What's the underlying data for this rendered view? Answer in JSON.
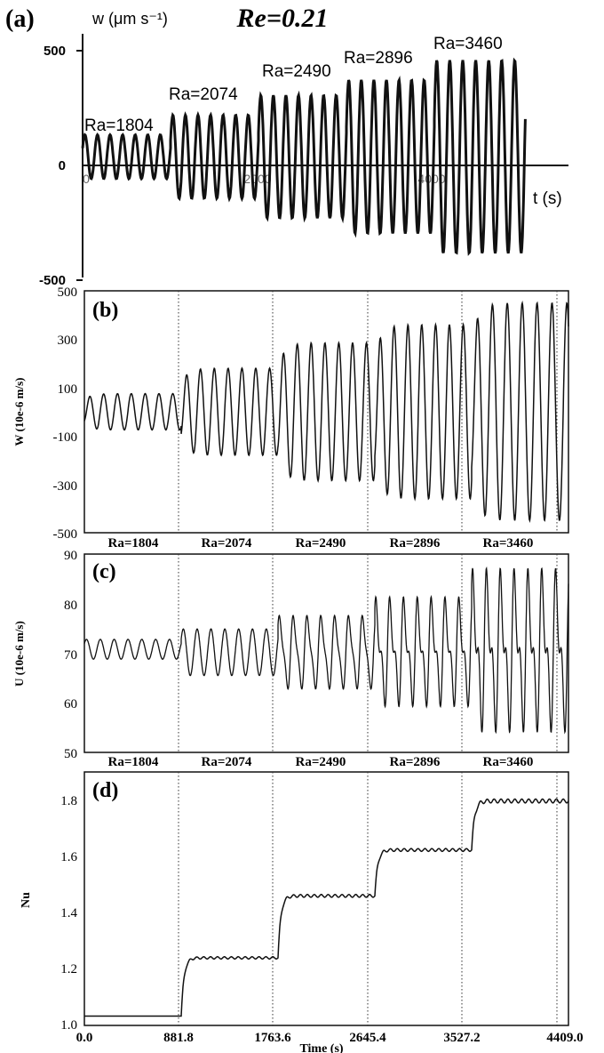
{
  "figure_title": "Re=0.21",
  "chart_data": [
    {
      "panel": "(a)",
      "type": "line",
      "ylabel": "w (μm s⁻¹)",
      "xlabel": "t (s)",
      "yticks": [
        "500",
        "0",
        "-500"
      ],
      "xticks": [
        "0",
        "2000",
        "4000"
      ],
      "ylim": [
        -550,
        560
      ],
      "xlim": [
        0,
        4800
      ],
      "segments": [
        {
          "label": "Ra=1804",
          "t_start": 0,
          "t_end": 880,
          "amplitude": 100,
          "cycles": 7
        },
        {
          "label": "Ra=2074",
          "t_start": 880,
          "t_end": 1760,
          "amplitude": 190,
          "cycles": 7
        },
        {
          "label": "Ra=2490",
          "t_start": 1760,
          "t_end": 2640,
          "amplitude": 280,
          "cycles": 7
        },
        {
          "label": "Ra=2896",
          "t_start": 2640,
          "t_end": 3520,
          "amplitude": 350,
          "cycles": 7
        },
        {
          "label": "Ra=3460",
          "t_start": 3520,
          "t_end": 4430,
          "amplitude": 440,
          "cycles": 7
        }
      ]
    },
    {
      "panel": "(b)",
      "type": "line",
      "ylabel": "W (10e-6 m/s)",
      "yticks": [
        "500",
        "300",
        "100",
        "-100",
        "-300",
        "-500"
      ],
      "ylim": [
        -500,
        500
      ],
      "xlim": [
        0,
        4409
      ],
      "bottom_labels": [
        "Ra=1804",
        "Ra=2074",
        "Ra=2490",
        "Ra=2896",
        "Ra=3460"
      ],
      "segments": [
        {
          "amplitude": 75,
          "cycles": 7
        },
        {
          "amplitude": 180,
          "cycles": 7
        },
        {
          "amplitude": 285,
          "cycles": 7
        },
        {
          "amplitude": 360,
          "cycles": 7
        },
        {
          "amplitude": 450,
          "cycles": 6.5
        }
      ]
    },
    {
      "panel": "(c)",
      "type": "line",
      "ylabel": "U (10e-6 m/s)",
      "yticks": [
        "90",
        "80",
        "70",
        "60",
        "50"
      ],
      "ylim": [
        50,
        90
      ],
      "xlim": [
        0,
        4409
      ],
      "bottom_labels": [
        "Ra=1804",
        "Ra=2074",
        "Ra=2490",
        "Ra=2896",
        "Ra=3460"
      ],
      "segments": [
        {
          "mean": 70.8,
          "amplitude": 2,
          "cycles": 7,
          "sub": 0
        },
        {
          "mean": 70.2,
          "amplitude": 4.7,
          "cycles": 7,
          "sub": 0
        },
        {
          "mean": 70.2,
          "amplitude": 7.5,
          "cycles": 7,
          "sub": 0.3
        },
        {
          "mean": 70.3,
          "amplitude": 10.5,
          "cycles": 7,
          "sub": 0.55
        },
        {
          "mean": 70.6,
          "amplitude": 15.5,
          "cycles": 7,
          "sub": 0.6
        }
      ]
    },
    {
      "panel": "(d)",
      "type": "line",
      "ylabel": "Nu",
      "xlabel": "Time (s)",
      "yticks": [
        "1.8",
        "1.6",
        "1.4",
        "1.2",
        "1.0"
      ],
      "xticks": [
        "0.0",
        "881.8",
        "1763.6",
        "2645.4",
        "3527.2",
        "4409.0"
      ],
      "ylim": [
        1.0,
        1.9
      ],
      "xlim": [
        0,
        4409
      ],
      "segments": [
        {
          "level": 1.033,
          "ripple": 0.0
        },
        {
          "level": 1.24,
          "ripple": 0.004
        },
        {
          "level": 1.46,
          "ripple": 0.005
        },
        {
          "level": 1.623,
          "ripple": 0.005
        },
        {
          "level": 1.797,
          "ripple": 0.007
        }
      ]
    }
  ]
}
